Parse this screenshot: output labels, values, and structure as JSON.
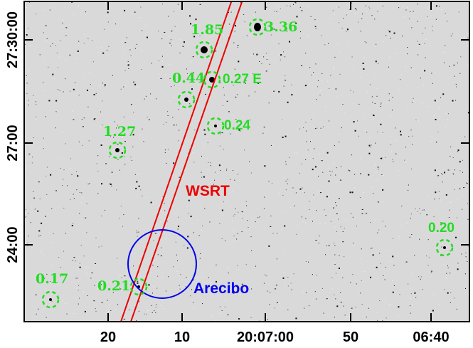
{
  "colors": {
    "background": "#d9d9d9",
    "source_marker": "#22dd22",
    "wsrt_beam": "#ee0000",
    "arecibo_beam": "#0000ee"
  },
  "axes": {
    "x_ticks": [
      "20",
      "10",
      "20:07:00",
      "50",
      "06:40"
    ],
    "y_ticks": [
      "27:30:00",
      "27:00",
      "24:00"
    ]
  },
  "sources": [
    {
      "label": "3.36"
    },
    {
      "label": "1.85"
    },
    {
      "label": "0.44"
    },
    {
      "label": "0.27 E"
    },
    {
      "label": "0.24"
    },
    {
      "label": "1.27"
    },
    {
      "label": "0.20"
    },
    {
      "label": "0.21"
    },
    {
      "label": "0.17"
    }
  ],
  "beams": {
    "wsrt_label": "WSRT",
    "arecibo_label": "Arecibo"
  }
}
